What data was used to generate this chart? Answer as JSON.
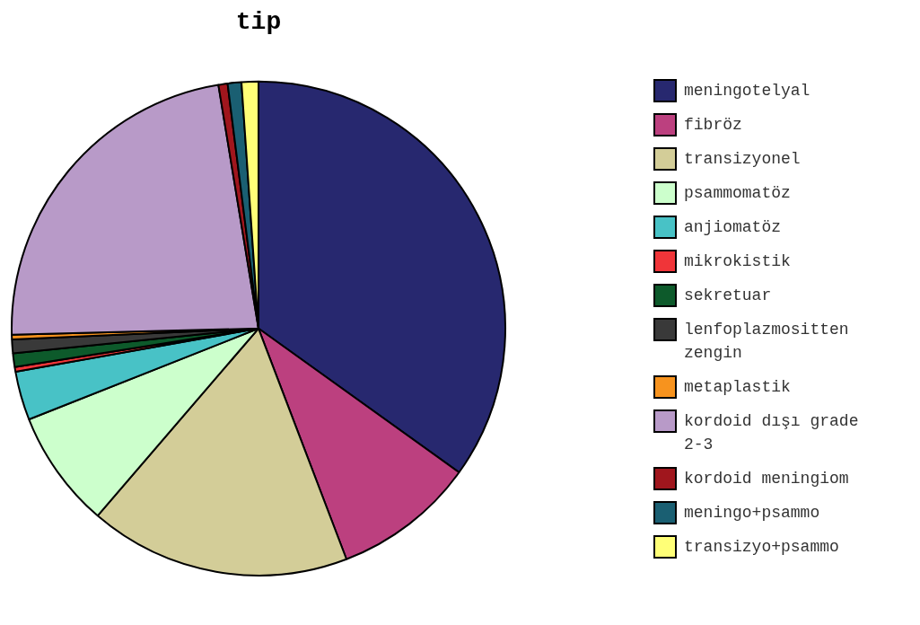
{
  "chart_data": {
    "type": "pie",
    "title": "tip",
    "categories": [
      "meningotelyal",
      "fibröz",
      "transizyonel",
      "psammomatöz",
      "anjiomatöz",
      "mikrokistik",
      "sekretuar",
      "lenfoplazmositten zengin",
      "metaplastik",
      "kordoid dışı grade 2-3",
      "kordoid meningiom",
      "meningo+psammo",
      "transizyo+psammo"
    ],
    "values": [
      34.9,
      9.3,
      17.1,
      7.7,
      3.2,
      0.3,
      0.9,
      0.9,
      0.3,
      22.8,
      0.6,
      0.9,
      1.1
    ],
    "colors": [
      "#27286f",
      "#bc407f",
      "#d3cd98",
      "#ccffcc",
      "#48c2c6",
      "#f03539",
      "#0d5a2b",
      "#393939",
      "#f7931e",
      "#b89ac8",
      "#a0161d",
      "#1a5f72",
      "#ffff77"
    ],
    "legend": "right"
  }
}
